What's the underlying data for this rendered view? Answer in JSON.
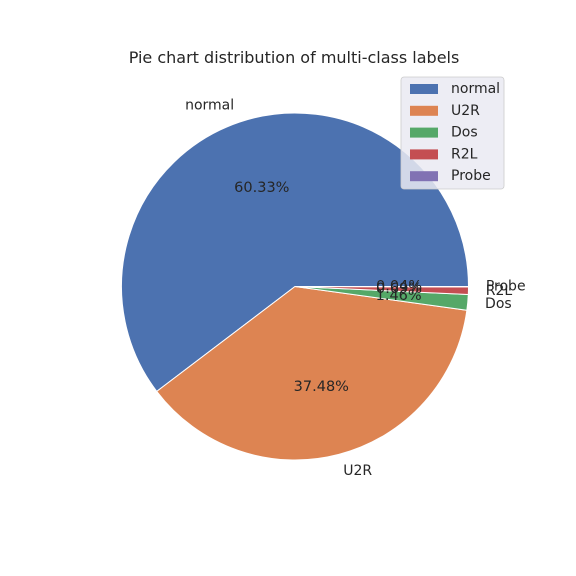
{
  "chart_data": {
    "type": "pie",
    "title": "Pie chart distribution of multi-class labels",
    "categories": [
      "normal",
      "U2R",
      "Dos",
      "R2L",
      "Probe"
    ],
    "values": [
      60.33,
      37.48,
      1.46,
      0.69,
      0.04
    ],
    "value_labels": [
      "60.33%",
      "37.48%",
      "1.46%",
      "0.69%",
      "0.04%"
    ],
    "colors": [
      "#4c72b0",
      "#dd8452",
      "#55a868",
      "#c44e52",
      "#8172b3"
    ],
    "start_angle_deg": 0,
    "direction": "counterclockwise",
    "legend": {
      "position": "top-right",
      "entries": [
        "normal",
        "U2R",
        "Dos",
        "R2L",
        "Probe"
      ]
    }
  }
}
